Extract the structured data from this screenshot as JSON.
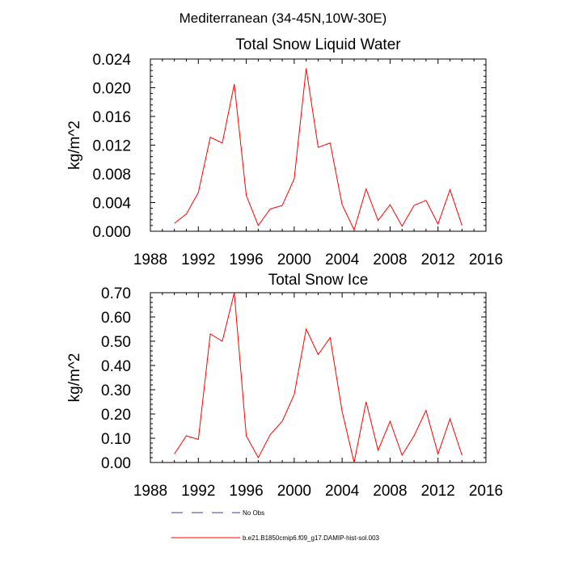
{
  "figure_title": "Mediterranean (34-45N,10W-30E)",
  "chart_data": [
    {
      "type": "line",
      "title": "Total Snow Liquid Water",
      "xlabel": "",
      "ylabel": "kg/m^2",
      "xlim": [
        1988,
        2016
      ],
      "ylim": [
        0,
        0.024
      ],
      "xticks": [
        1988,
        1992,
        1996,
        2000,
        2004,
        2008,
        2012,
        2016
      ],
      "xtick_labels": [
        "1988",
        "1992",
        "1996",
        "2000",
        "2004",
        "2008",
        "2012",
        "2016"
      ],
      "yticks": [
        0,
        0.004,
        0.008,
        0.012,
        0.016,
        0.02,
        0.024
      ],
      "ytick_labels": [
        "0.000",
        "0.004",
        "0.008",
        "0.012",
        "0.016",
        "0.020",
        "0.024"
      ],
      "grid": false,
      "series": [
        {
          "name": "b.e21.B1850cmip6.f09_g17.DAMIP-hist-sol.003",
          "color": "#ff0000",
          "x": [
            1990,
            1991,
            1992,
            1993,
            1994,
            1995,
            1996,
            1997,
            1998,
            1999,
            2000,
            2001,
            2002,
            2003,
            2004,
            2005,
            2006,
            2007,
            2008,
            2009,
            2010,
            2011,
            2012,
            2013,
            2014
          ],
          "y": [
            0.0011,
            0.0024,
            0.0054,
            0.0131,
            0.0123,
            0.0205,
            0.005,
            0.0008,
            0.0031,
            0.0036,
            0.0073,
            0.0227,
            0.0117,
            0.0123,
            0.0037,
            0.0002,
            0.0059,
            0.0015,
            0.0037,
            0.0007,
            0.0036,
            0.0043,
            0.001,
            0.0058,
            0.0008
          ]
        }
      ]
    },
    {
      "type": "line",
      "title": "Total Snow Ice",
      "xlabel": "",
      "ylabel": "kg/m^2",
      "xlim": [
        1988,
        2016
      ],
      "ylim": [
        0,
        0.7
      ],
      "xticks": [
        1988,
        1992,
        1996,
        2000,
        2004,
        2008,
        2012,
        2016
      ],
      "xtick_labels": [
        "1988",
        "1992",
        "1996",
        "2000",
        "2004",
        "2008",
        "2012",
        "2016"
      ],
      "yticks": [
        0,
        0.1,
        0.2,
        0.3,
        0.4,
        0.5,
        0.6,
        0.7
      ],
      "ytick_labels": [
        "0.00",
        "0.10",
        "0.20",
        "0.30",
        "0.40",
        "0.50",
        "0.60",
        "0.70"
      ],
      "grid": false,
      "series": [
        {
          "name": "b.e21.B1850cmip6.f09_g17.DAMIP-hist-sol.003",
          "color": "#ff0000",
          "x": [
            1990,
            1991,
            1992,
            1993,
            1994,
            1995,
            1996,
            1997,
            1998,
            1999,
            2000,
            2001,
            2002,
            2003,
            2004,
            2005,
            2006,
            2007,
            2008,
            2009,
            2010,
            2011,
            2012,
            2013,
            2014
          ],
          "y": [
            0.035,
            0.11,
            0.095,
            0.53,
            0.5,
            0.7,
            0.11,
            0.02,
            0.115,
            0.17,
            0.28,
            0.55,
            0.445,
            0.515,
            0.21,
            0.0,
            0.25,
            0.05,
            0.17,
            0.03,
            0.11,
            0.215,
            0.035,
            0.18,
            0.03
          ]
        }
      ]
    }
  ],
  "legend": {
    "placement": "bottom",
    "items": [
      {
        "label": "No Obs",
        "color": "#3a3aa0",
        "style": "dashed"
      },
      {
        "label": "b.e21.B1850cmip6.f09_g17.DAMIP-hist-sol.003",
        "color": "#ff0000",
        "style": "solid"
      }
    ]
  }
}
